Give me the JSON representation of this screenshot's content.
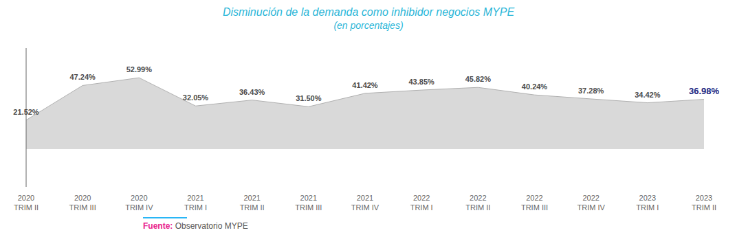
{
  "chart_data": {
    "type": "area",
    "title": "Disminución de la demanda como inhibidor negocios MYPE",
    "subtitle": "(en porcentajes)",
    "categories": [
      "2020\nTRIM II",
      "2020\nTRIM III",
      "2020\nTRIM IV",
      "2021\nTRIM I",
      "2021\nTRIM II",
      "2021\nTRIM III",
      "2021\nTRIM IV",
      "2022\nTRIM I",
      "2022\nTRIM II",
      "2022\nTRIM III",
      "2022\nTRIM IV",
      "2023\nTRIM I",
      "2023\nTRIM II"
    ],
    "values": [
      21.52,
      47.24,
      52.99,
      32.05,
      36.43,
      31.5,
      41.42,
      43.85,
      45.82,
      40.24,
      37.28,
      34.42,
      36.98
    ],
    "value_labels": [
      "21.52%",
      "47.24%",
      "52.99%",
      "32.05%",
      "36.43%",
      "31.50%",
      "41.42%",
      "43.85%",
      "45.82%",
      "40.24%",
      "37.28%",
      "34.42%",
      "36.98%"
    ],
    "color": "#d9d9d9",
    "ylim": [
      -28,
      75
    ],
    "data_labels": true,
    "tick_labels": "x",
    "grid": false,
    "annotations": [
      "Fuente:",
      "Observatorio MYPE"
    ]
  }
}
